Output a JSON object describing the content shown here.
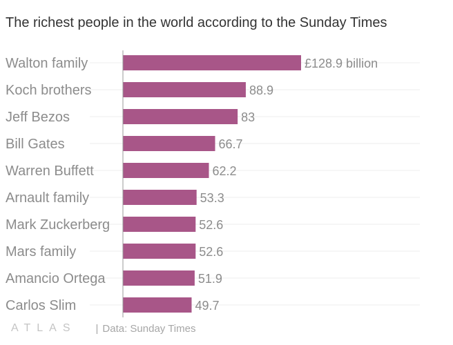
{
  "title": "The richest people in the world according to the Sunday Times",
  "chart_data": {
    "type": "bar",
    "orientation": "horizontal",
    "title": "The richest people in the world according to the Sunday Times",
    "categories": [
      "Walton family",
      "Koch brothers",
      "Jeff Bezos",
      "Bill Gates",
      "Warren Buffett",
      "Arnault family",
      "Mark Zuckerberg",
      "Mars family",
      "Amancio Ortega",
      "Carlos Slim"
    ],
    "values": [
      128.9,
      88.9,
      83,
      66.7,
      62.2,
      53.3,
      52.6,
      52.6,
      51.9,
      49.7
    ],
    "value_labels": [
      "£128.9 billion",
      "88.9",
      "83",
      "66.7",
      "62.2",
      "53.3",
      "52.6",
      "52.6",
      "51.9",
      "49.7"
    ],
    "unit": "£ billion",
    "xlim": [
      0,
      128.9
    ],
    "bar_color": "#a85688",
    "grid": true
  },
  "footer": {
    "logo": "ATLAS",
    "source": "Data: Sunday Times"
  }
}
